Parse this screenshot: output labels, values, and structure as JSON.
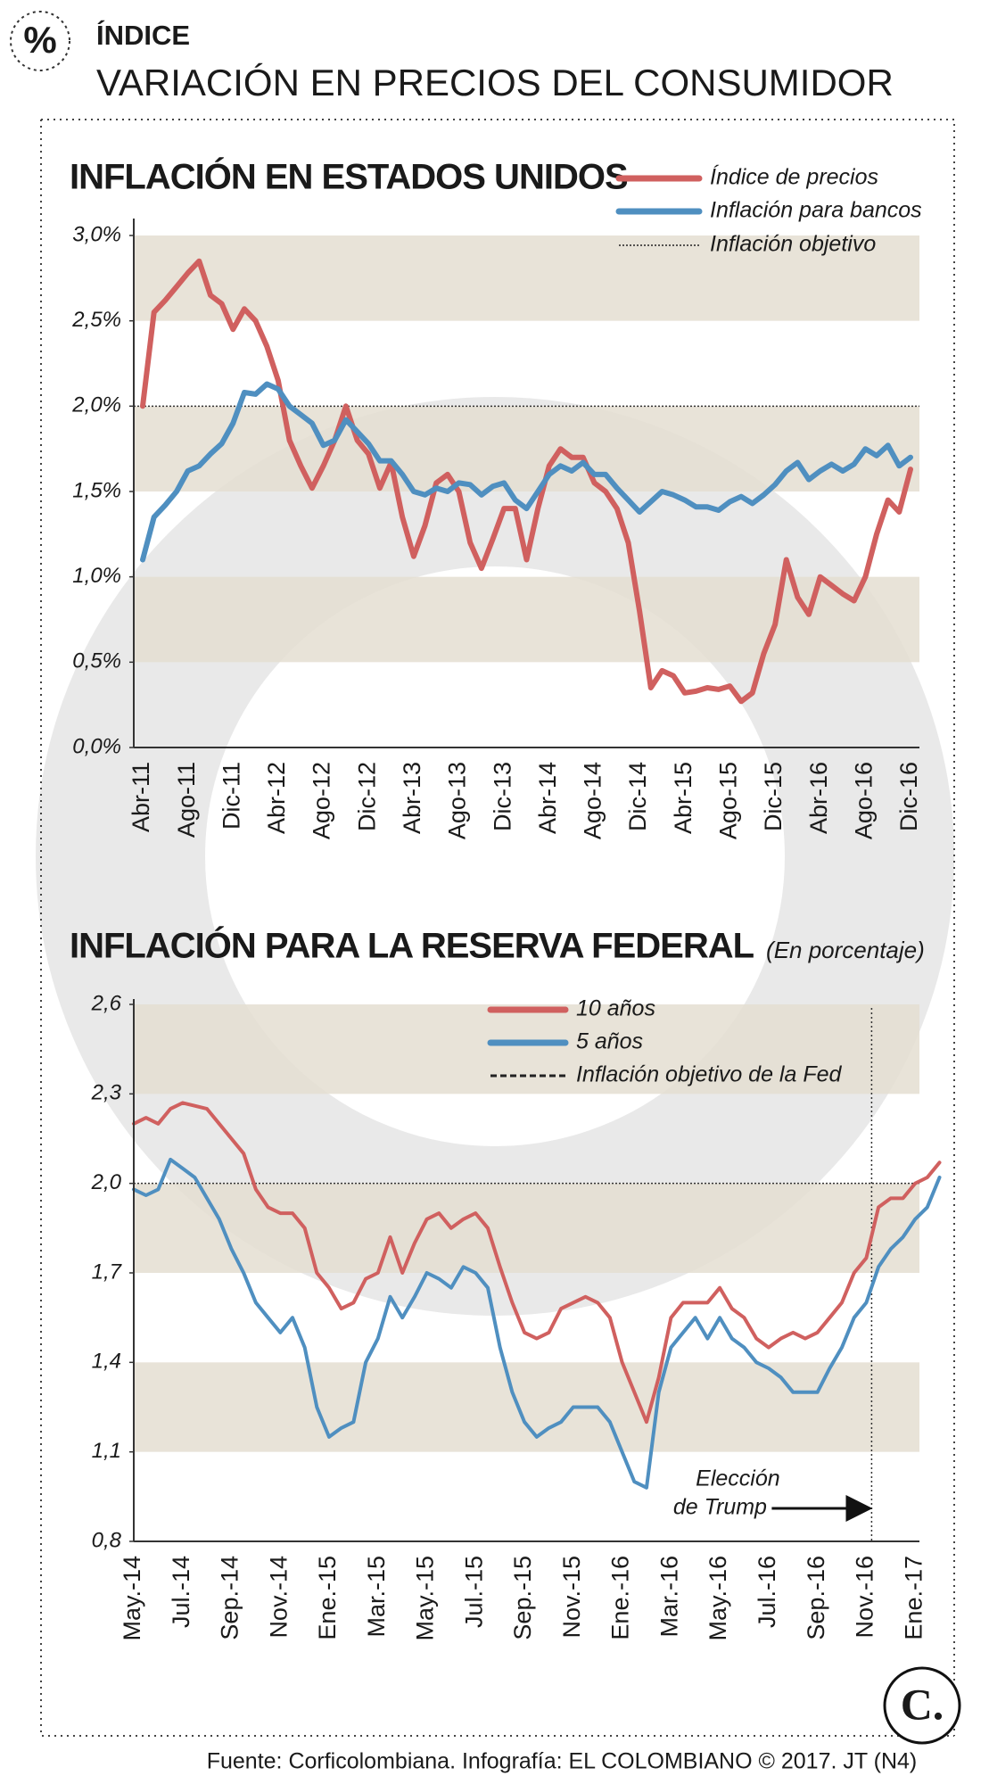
{
  "header": {
    "icon": "%",
    "kicker": "ÍNDICE",
    "title": "VARIACIÓN EN PRECIOS DEL CONSUMIDOR",
    "logo": "C."
  },
  "chart_data": [
    {
      "type": "line",
      "title": "INFLACIÓN EN ESTADOS UNIDOS",
      "categories": [
        "Abr-11",
        null,
        null,
        null,
        "Ago-11",
        null,
        null,
        null,
        "Dic-11",
        null,
        null,
        null,
        "Abr-12",
        null,
        null,
        null,
        "Ago-12",
        null,
        null,
        null,
        "Dic-12",
        null,
        null,
        null,
        "Abr-13",
        null,
        null,
        null,
        "Ago-13",
        null,
        null,
        null,
        "Dic-13",
        null,
        null,
        null,
        "Abr-14",
        null,
        null,
        null,
        "Ago-14",
        null,
        null,
        null,
        "Dic-14",
        null,
        null,
        null,
        "Abr-15",
        null,
        null,
        null,
        "Ago-15",
        null,
        null,
        null,
        "Dic-15",
        null,
        null,
        null,
        "Abr-16",
        null,
        null,
        null,
        "Ago-16",
        null,
        null,
        null,
        "Dic-16"
      ],
      "series": [
        {
          "name": "Índice de precios",
          "color": "#d0605f",
          "values": [
            2.0,
            2.55,
            2.62,
            2.7,
            2.78,
            2.85,
            2.65,
            2.6,
            2.45,
            2.57,
            2.5,
            2.35,
            2.15,
            1.8,
            1.65,
            1.52,
            1.65,
            1.8,
            2.0,
            1.8,
            1.72,
            1.52,
            1.67,
            1.35,
            1.12,
            1.3,
            1.55,
            1.6,
            1.5,
            1.2,
            1.05,
            1.22,
            1.4,
            1.4,
            1.1,
            1.4,
            1.65,
            1.75,
            1.7,
            1.7,
            1.55,
            1.5,
            1.4,
            1.2,
            0.8,
            0.35,
            0.45,
            0.42,
            0.32,
            0.33,
            0.35,
            0.34,
            0.36,
            0.27,
            0.32,
            0.55,
            0.72,
            1.1,
            0.88,
            0.78,
            1.0,
            0.95,
            0.9,
            0.86,
            1.0,
            1.25,
            1.45,
            1.38,
            1.63
          ]
        },
        {
          "name": "Inflación para bancos",
          "color": "#4f8fc0",
          "values": [
            1.1,
            1.35,
            1.42,
            1.5,
            1.62,
            1.65,
            1.72,
            1.78,
            1.9,
            2.08,
            2.07,
            2.13,
            2.1,
            2.0,
            1.95,
            1.9,
            1.77,
            1.8,
            1.92,
            1.85,
            1.78,
            1.68,
            1.68,
            1.6,
            1.5,
            1.48,
            1.52,
            1.5,
            1.55,
            1.54,
            1.48,
            1.53,
            1.55,
            1.45,
            1.4,
            1.5,
            1.6,
            1.65,
            1.62,
            1.67,
            1.6,
            1.6,
            1.52,
            1.45,
            1.38,
            1.44,
            1.5,
            1.48,
            1.45,
            1.41,
            1.41,
            1.39,
            1.44,
            1.47,
            1.43,
            1.48,
            1.54,
            1.62,
            1.67,
            1.57,
            1.62,
            1.66,
            1.62,
            1.66,
            1.75,
            1.71,
            1.77,
            1.65,
            1.7
          ]
        }
      ],
      "target": 2.0,
      "target_label": "Inflación objetivo",
      "ylim": [
        0,
        3
      ],
      "yticks": [
        {
          "value": 0,
          "label": "0,0%"
        },
        {
          "value": 0.5,
          "label": "0,5%"
        },
        {
          "value": 1,
          "label": "1,0%"
        },
        {
          "value": 1.5,
          "label": "1,5%"
        },
        {
          "value": 2,
          "label": "2,0%"
        },
        {
          "value": 2.5,
          "label": "2,5%"
        },
        {
          "value": 3,
          "label": "3,0%"
        }
      ]
    },
    {
      "type": "line",
      "title": "INFLACIÓN PARA LA RESERVA FEDERAL",
      "subtitle": "(En porcentaje)",
      "categories": [
        "May.-14",
        null,
        null,
        null,
        "Jul.-14",
        null,
        null,
        null,
        "Sep.-14",
        null,
        null,
        null,
        "Nov.-14",
        null,
        null,
        null,
        "Ene.-15",
        null,
        null,
        null,
        "Mar.-15",
        null,
        null,
        null,
        "May.-15",
        null,
        null,
        null,
        "Jul.-15",
        null,
        null,
        null,
        "Sep.-15",
        null,
        null,
        null,
        "Nov.-15",
        null,
        null,
        null,
        "Ene.-16",
        null,
        null,
        null,
        "Mar.-16",
        null,
        null,
        null,
        "May.-16",
        null,
        null,
        null,
        "Jul.-16",
        null,
        null,
        null,
        "Sep.-16",
        null,
        null,
        null,
        "Nov.-16",
        null,
        null,
        null,
        "Ene.-17",
        null,
        null
      ],
      "series": [
        {
          "name": "10 años",
          "color": "#d0605f",
          "values": [
            2.2,
            2.22,
            2.2,
            2.25,
            2.27,
            2.26,
            2.25,
            2.2,
            2.15,
            2.1,
            1.98,
            1.92,
            1.9,
            1.9,
            1.85,
            1.7,
            1.65,
            1.58,
            1.6,
            1.68,
            1.7,
            1.82,
            1.7,
            1.8,
            1.88,
            1.9,
            1.85,
            1.88,
            1.9,
            1.85,
            1.72,
            1.6,
            1.5,
            1.48,
            1.5,
            1.58,
            1.6,
            1.62,
            1.6,
            1.55,
            1.4,
            1.3,
            1.2,
            1.35,
            1.55,
            1.6,
            1.6,
            1.6,
            1.65,
            1.58,
            1.55,
            1.48,
            1.45,
            1.48,
            1.5,
            1.48,
            1.5,
            1.55,
            1.6,
            1.7,
            1.75,
            1.92,
            1.95,
            1.95,
            2.0,
            2.02,
            2.07
          ]
        },
        {
          "name": "5 años",
          "color": "#4f8fc0",
          "values": [
            1.98,
            1.96,
            1.98,
            2.08,
            2.05,
            2.02,
            1.95,
            1.88,
            1.78,
            1.7,
            1.6,
            1.55,
            1.5,
            1.55,
            1.45,
            1.25,
            1.15,
            1.18,
            1.2,
            1.4,
            1.48,
            1.62,
            1.55,
            1.62,
            1.7,
            1.68,
            1.65,
            1.72,
            1.7,
            1.65,
            1.45,
            1.3,
            1.2,
            1.15,
            1.18,
            1.2,
            1.25,
            1.25,
            1.25,
            1.2,
            1.1,
            1.0,
            0.98,
            1.3,
            1.45,
            1.5,
            1.55,
            1.48,
            1.55,
            1.48,
            1.45,
            1.4,
            1.38,
            1.35,
            1.3,
            1.3,
            1.3,
            1.38,
            1.45,
            1.55,
            1.6,
            1.72,
            1.78,
            1.82,
            1.88,
            1.92,
            2.02
          ]
        }
      ],
      "target": 2.0,
      "target_label": "Inflación objetivo de la Fed",
      "annotation": {
        "text": [
          "Elección",
          "de Trump"
        ],
        "category": "Nov.-16"
      },
      "ylim": [
        0.8,
        2.6
      ],
      "yticks": [
        {
          "value": 0.8,
          "label": "0,8"
        },
        {
          "value": 1.1,
          "label": "1,1"
        },
        {
          "value": 1.4,
          "label": "1,4"
        },
        {
          "value": 1.7,
          "label": "1,7"
        },
        {
          "value": 2.0,
          "label": "2,0"
        },
        {
          "value": 2.3,
          "label": "2,3"
        },
        {
          "value": 2.6,
          "label": "2,6"
        }
      ]
    }
  ],
  "source": "Fuente: Corficolombiana. Infografía: EL COLOMBIANO © 2017. JT (N4)"
}
